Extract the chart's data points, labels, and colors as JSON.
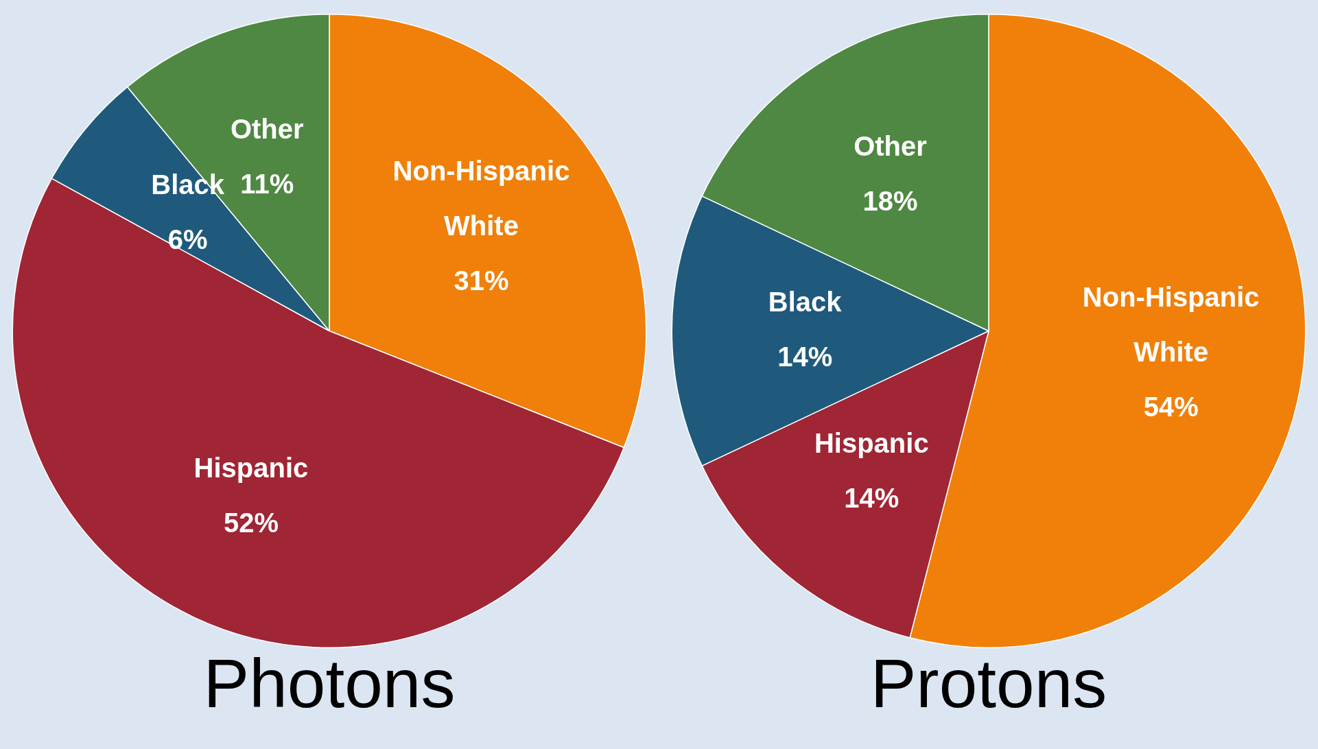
{
  "chart_data": [
    {
      "type": "pie",
      "title": "Photons",
      "categories": [
        "Non-Hispanic White",
        "Hispanic",
        "Black",
        "Other"
      ],
      "values": [
        31,
        52,
        6,
        11
      ],
      "value_labels": [
        "31%",
        "52%",
        "6%",
        "11%"
      ],
      "colors": [
        "#f0800a",
        "#a02535",
        "#1f5a7c",
        "#4f8842"
      ],
      "legend": false
    },
    {
      "type": "pie",
      "title": "Protons",
      "categories": [
        "Non-Hispanic White",
        "Hispanic",
        "Black",
        "Other"
      ],
      "values": [
        54,
        14,
        14,
        18
      ],
      "value_labels": [
        "54%",
        "14%",
        "14%",
        "18%"
      ],
      "colors": [
        "#f0800a",
        "#a02535",
        "#1f5a7c",
        "#4f8842"
      ],
      "legend": false
    }
  ]
}
